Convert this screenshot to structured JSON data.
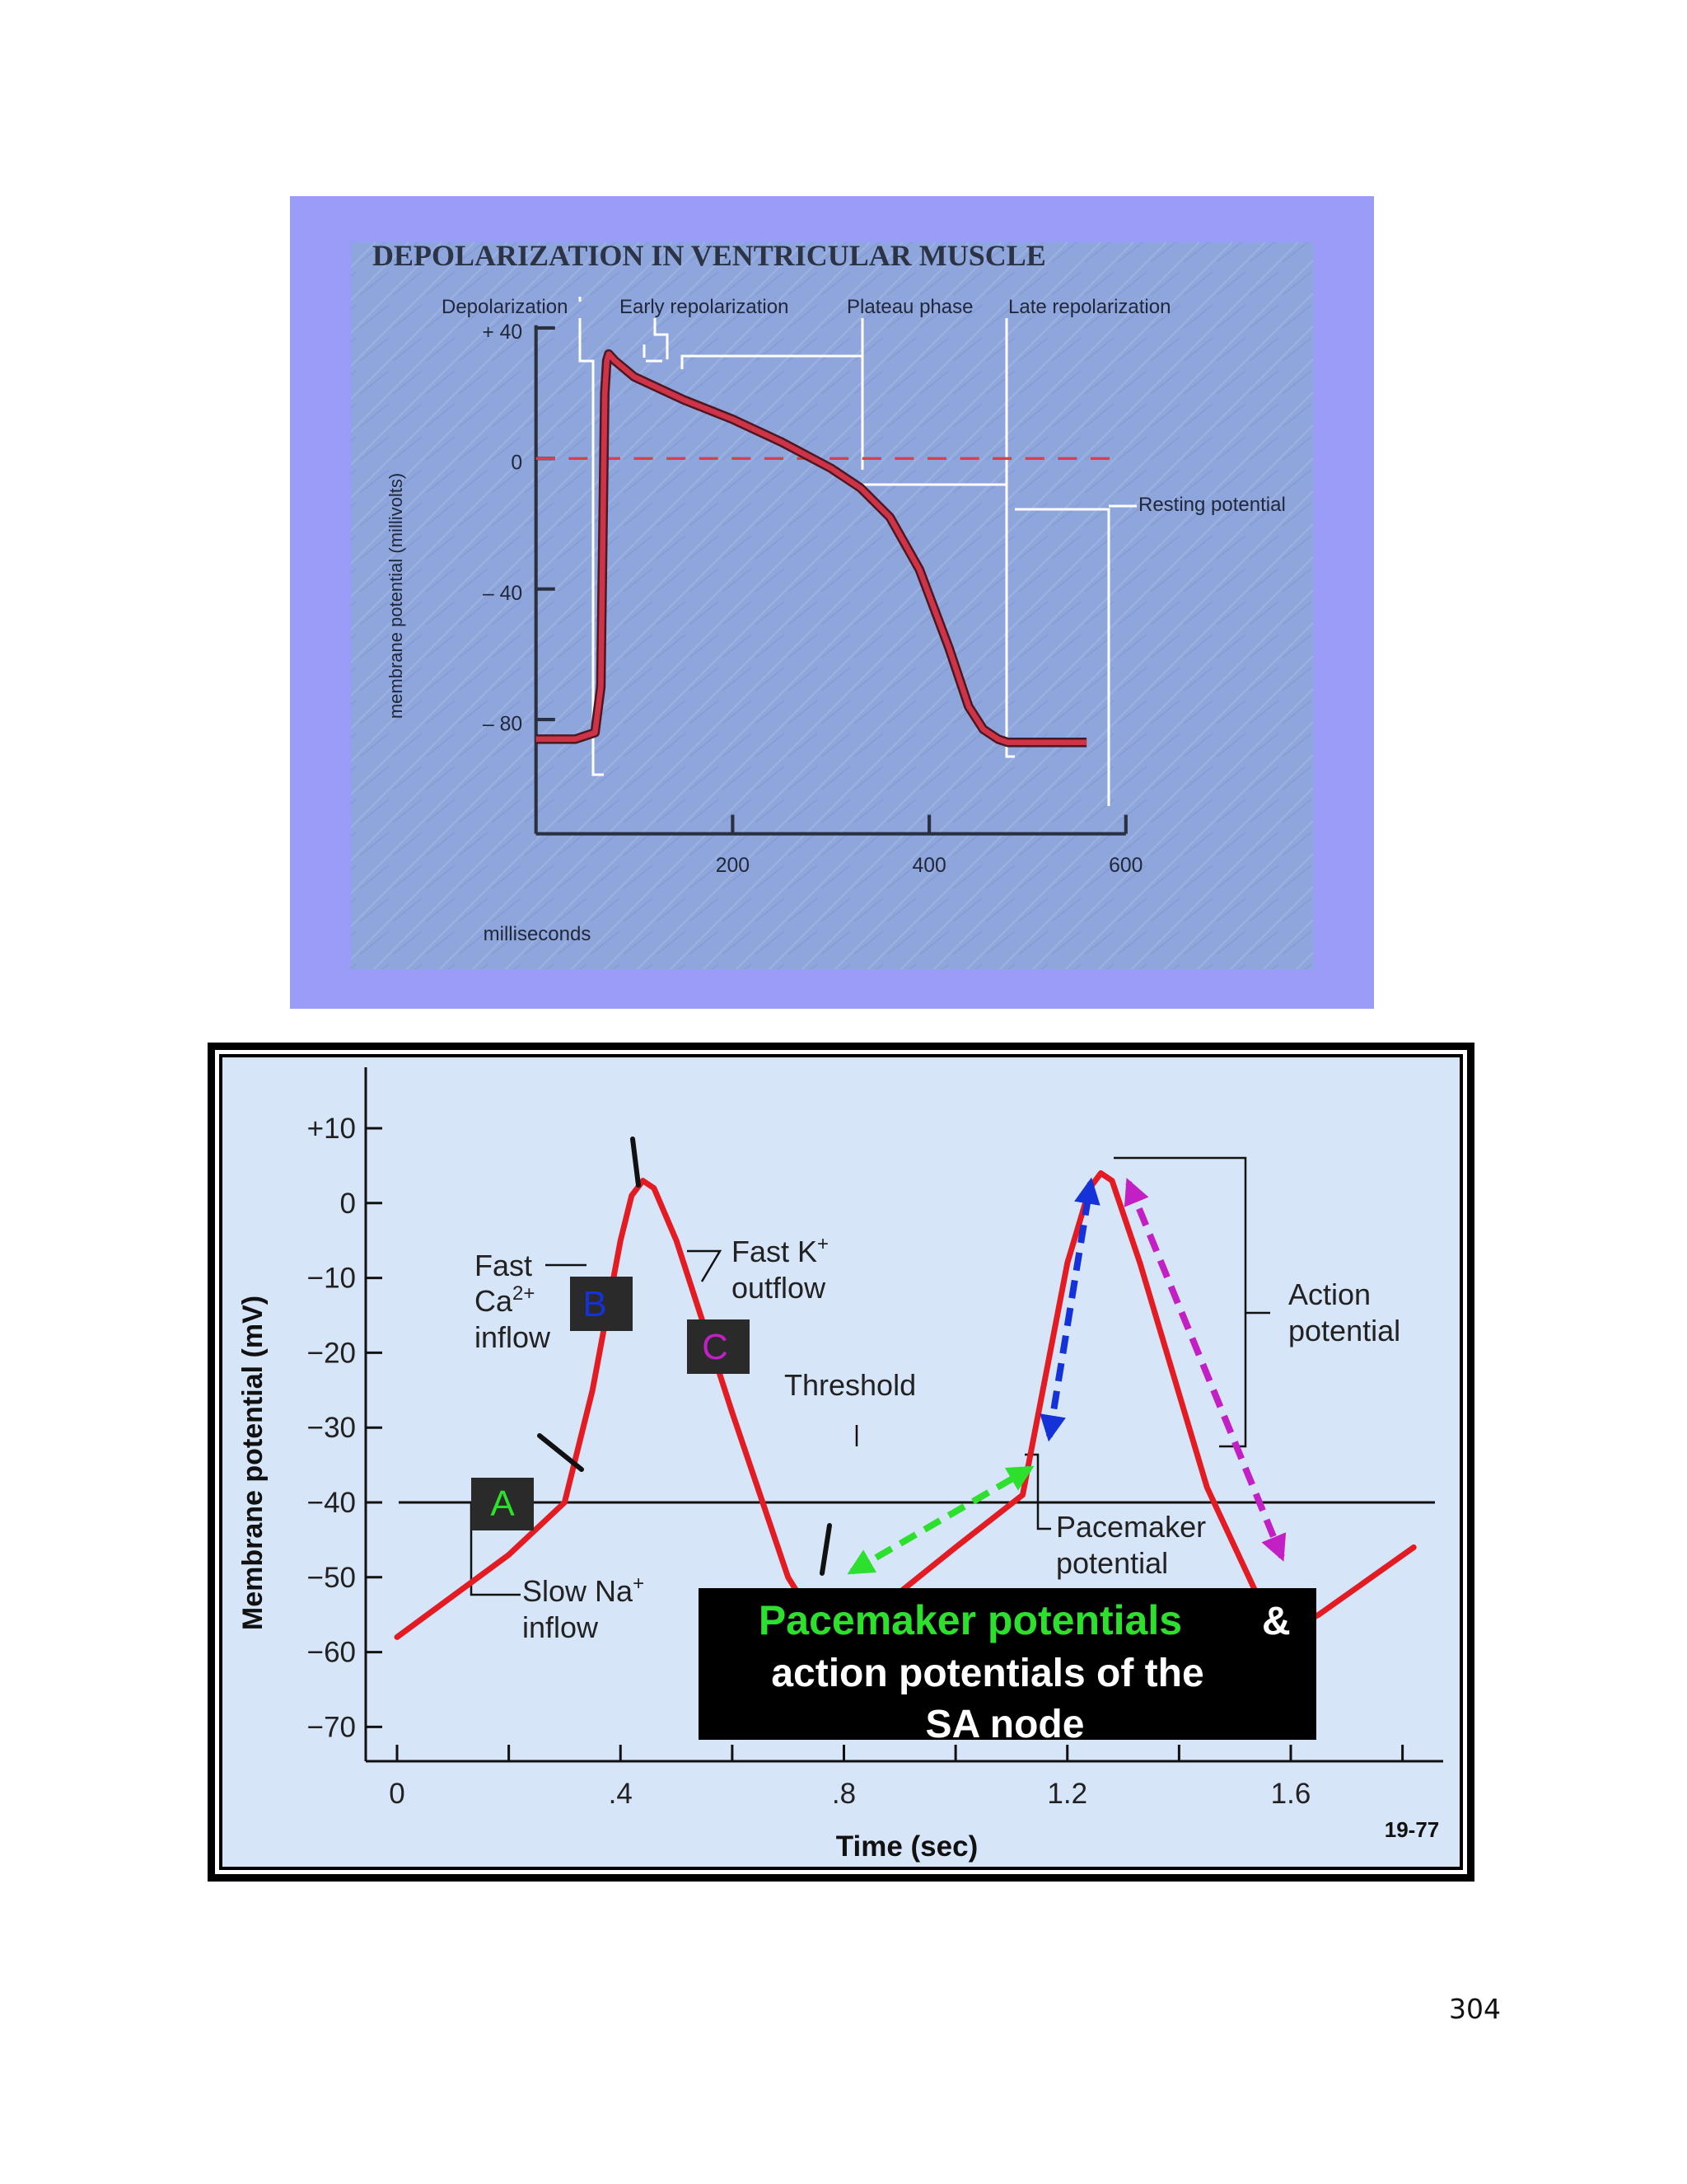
{
  "page_number": "304",
  "colors": {
    "frame_periwinkle": "#9b9cf7",
    "chart1_bg": "#8fa6dc",
    "chart1_trace": "#cf3347",
    "chart2_bg": "#d7e5f8",
    "chart2_trace": "#e31b23",
    "label_green": "#2ee02e",
    "label_blue": "#1432d8",
    "label_magenta": "#c21fc4"
  },
  "chart_data": [
    {
      "type": "line",
      "title": "DEPOLARIZATION IN VENTRICULAR MUSCLE",
      "xlabel": "milliseconds",
      "ylabel": "membrane potential (millivolts)",
      "xlim": [
        0,
        600
      ],
      "ylim": [
        -90,
        40
      ],
      "x_ticks": [
        {
          "value": 200,
          "label": "200"
        },
        {
          "value": 400,
          "label": "400"
        },
        {
          "value": 600,
          "label": "600"
        }
      ],
      "y_ticks": [
        {
          "value": 40,
          "label": "+ 40"
        },
        {
          "value": 0,
          "label": "0"
        },
        {
          "value": -40,
          "label": "– 40"
        },
        {
          "value": -80,
          "label": "– 80"
        }
      ],
      "phase_labels": [
        {
          "label": "Depolarization"
        },
        {
          "label": "Early repolarization"
        },
        {
          "label": "Plateau phase"
        },
        {
          "label": "Late repolarization"
        }
      ],
      "resting_potential_label": "Resting potential",
      "series": [
        {
          "x": [
            0,
            40,
            60,
            66,
            70,
            72,
            74,
            80,
            100,
            150,
            200,
            250,
            300,
            330,
            360,
            390,
            420,
            440,
            455,
            470,
            480,
            500,
            560
          ],
          "y": [
            -86,
            -86,
            -84,
            -70,
            20,
            30,
            32,
            30,
            25,
            18,
            12,
            5,
            -3,
            -9,
            -18,
            -34,
            -58,
            -76,
            -83,
            -86,
            -87,
            -87,
            -87
          ]
        }
      ]
    },
    {
      "type": "line",
      "title": "",
      "xlabel": "Time (sec)",
      "ylabel": "Membrane potential (mV)",
      "xlim": [
        0,
        1.8
      ],
      "ylim": [
        -70,
        10
      ],
      "x_ticks": [
        {
          "value": 0,
          "label": "0"
        },
        {
          "value": 0.4,
          "label": ".4"
        },
        {
          "value": 0.8,
          "label": ".8"
        },
        {
          "value": 1.2,
          "label": "1.2"
        },
        {
          "value": 1.6,
          "label": "1.6"
        }
      ],
      "y_ticks": [
        {
          "value": 10,
          "label": "+10"
        },
        {
          "value": 0,
          "label": "0"
        },
        {
          "value": -10,
          "label": "−10"
        },
        {
          "value": -20,
          "label": "−20"
        },
        {
          "value": -30,
          "label": "−30"
        },
        {
          "value": -40,
          "label": "−40"
        },
        {
          "value": -50,
          "label": "−50"
        },
        {
          "value": -60,
          "label": "−60"
        },
        {
          "value": -70,
          "label": "−70"
        }
      ],
      "threshold": -40,
      "series": [
        {
          "x": [
            0,
            0.2,
            0.3,
            0.35,
            0.4,
            0.42,
            0.44,
            0.46,
            0.5,
            0.6,
            0.7,
            0.75,
            0.8,
            0.9,
            1.0,
            1.12,
            1.2,
            1.24,
            1.26,
            1.28,
            1.33,
            1.45,
            1.55,
            1.6,
            1.65,
            1.82
          ],
          "y": [
            -58,
            -47,
            -40,
            -25,
            -5,
            1,
            3,
            2,
            -5,
            -28,
            -50,
            -56,
            -57,
            -52,
            -46,
            -39,
            -8,
            2,
            4,
            3,
            -8,
            -38,
            -54,
            -57,
            -55,
            -46
          ]
        }
      ],
      "annotations": {
        "fast_ca": [
          "Fast",
          "Ca",
          "2+",
          "inflow"
        ],
        "fast_k": [
          "Fast K",
          "+",
          "outflow"
        ],
        "threshold": "Threshold",
        "slow_na": [
          "Slow Na",
          "+",
          "inflow"
        ],
        "pacemaker": [
          "Pacemaker",
          "potential"
        ],
        "action": [
          "Action",
          "potential"
        ],
        "marker_a": "A",
        "marker_b": "B",
        "marker_c": "C",
        "caption_green": "Pacemaker potentials",
        "caption_amp": "&",
        "caption_line2": "action potentials of the",
        "caption_line3": "SA node",
        "figure_number": "19-77"
      }
    }
  ]
}
